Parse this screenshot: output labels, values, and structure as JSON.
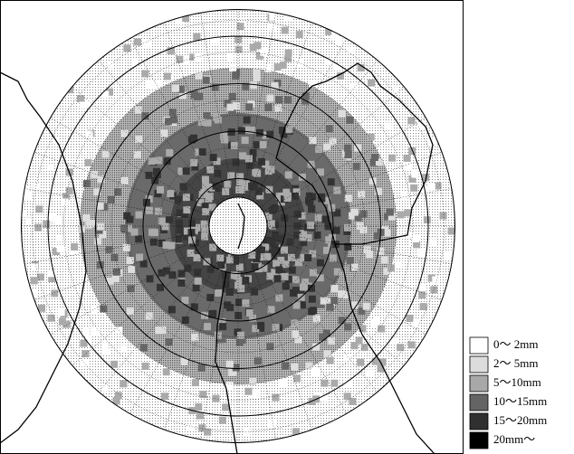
{
  "legend": {
    "items": [
      {
        "label": "0～ 2mm",
        "color": "#ffffff"
      },
      {
        "label": "2～ 5mm",
        "color": "#dcdcdc"
      },
      {
        "label": "5～10mm",
        "color": "#a8a8a8"
      },
      {
        "label": "10～15mm",
        "color": "#646464"
      },
      {
        "label": "15～20mm",
        "color": "#303030"
      },
      {
        "label": "20mm～",
        "color": "#000000"
      }
    ]
  }
}
